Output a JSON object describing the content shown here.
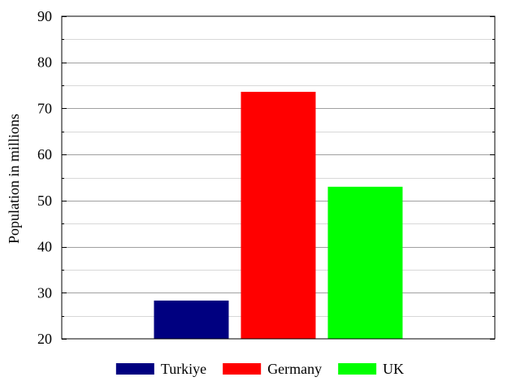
{
  "chart_data": {
    "type": "bar",
    "categories": [
      "Turkiye",
      "Germany",
      "UK"
    ],
    "series": [
      {
        "name": "Turkiye",
        "values": [
          28.3,
          null,
          null
        ],
        "color": "#000080"
      },
      {
        "name": "Germany",
        "values": [
          null,
          73.6,
          null
        ],
        "color": "#ff0000"
      },
      {
        "name": "UK",
        "values": [
          null,
          null,
          53.0
        ],
        "color": "#00ff00"
      }
    ],
    "values": [
      28.3,
      73.6,
      53.0
    ],
    "colors": [
      "#000080",
      "#ff0000",
      "#00ff00"
    ],
    "ylabel": "Population in millions",
    "ylim": [
      20,
      90
    ],
    "yticks": [
      "20",
      "30",
      "40",
      "50",
      "60",
      "70",
      "80",
      "90"
    ],
    "grid": true,
    "legend": {
      "position": "bottom",
      "entries": [
        "Turkiye",
        "Germany",
        "UK"
      ]
    }
  }
}
